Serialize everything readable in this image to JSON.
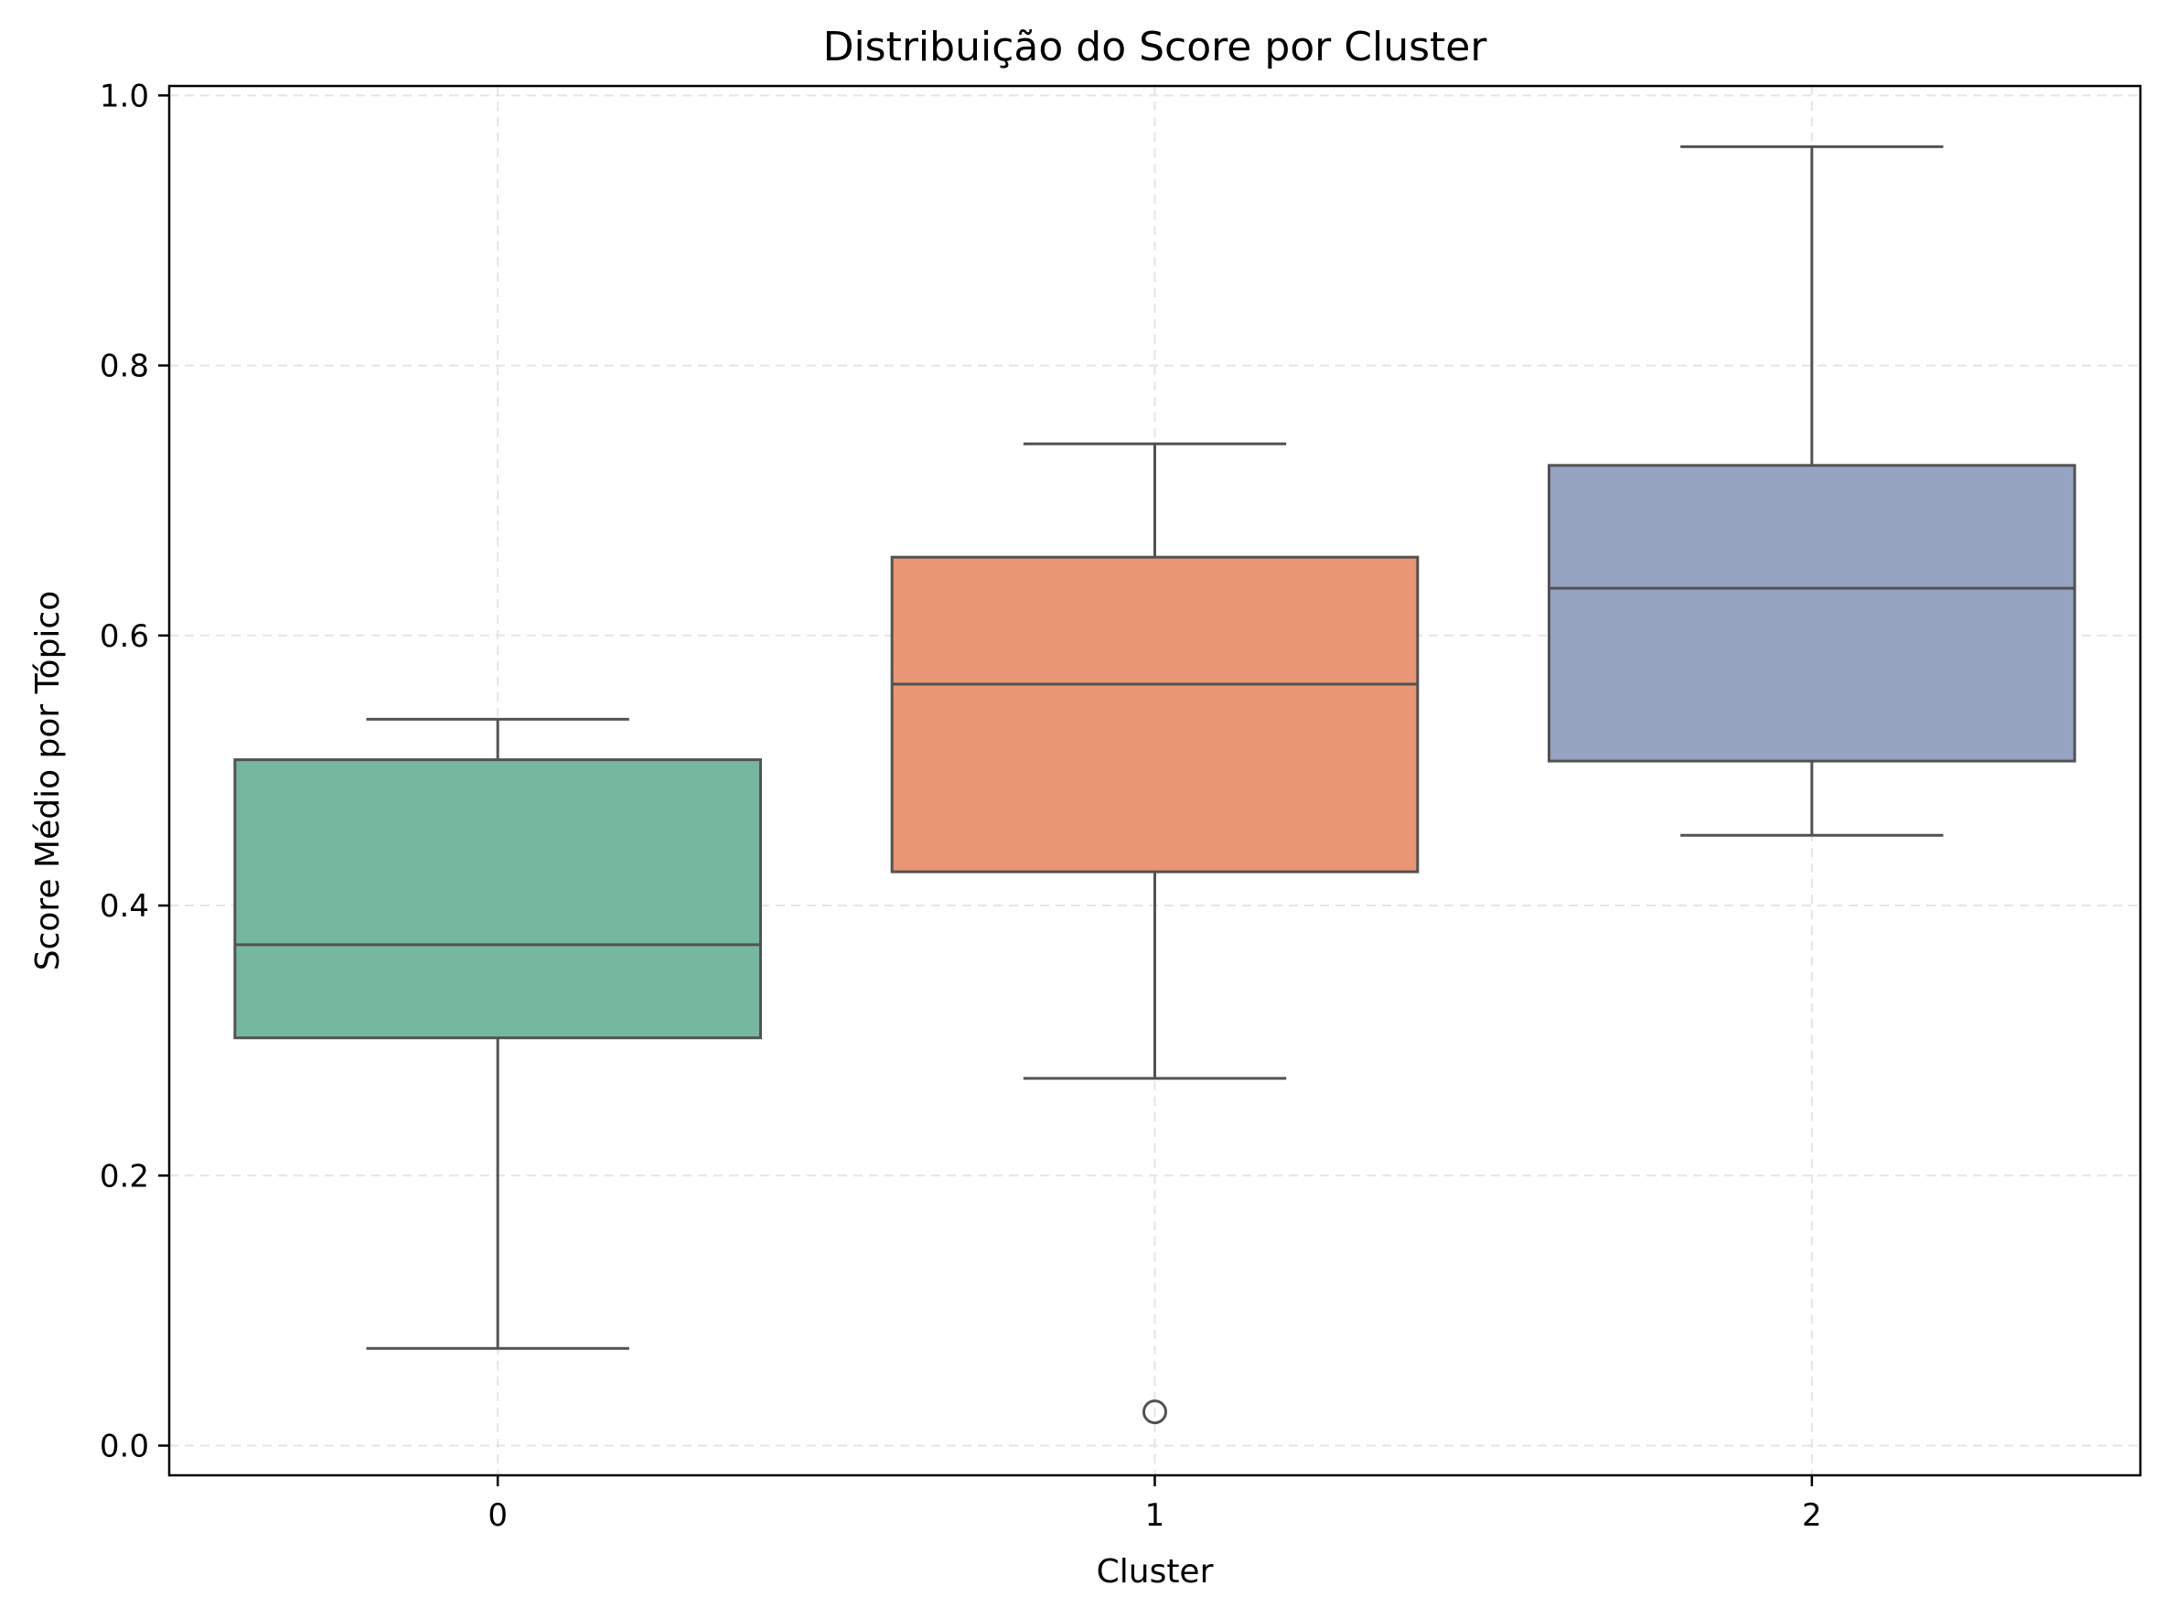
{
  "chart_data": {
    "type": "box",
    "title": "Distribuição do Score por Cluster",
    "xlabel": "Cluster",
    "ylabel": "Score Médio por Tópico",
    "ylim": [
      -0.022,
      1.007
    ],
    "yticks": [
      0.0,
      0.2,
      0.4,
      0.6,
      0.8,
      1.0
    ],
    "ytick_labels": [
      "0.0",
      "0.2",
      "0.4",
      "0.6",
      "0.8",
      "1.0"
    ],
    "grid": true,
    "categories": [
      "0",
      "1",
      "2"
    ],
    "boxes": [
      {
        "cluster": "0",
        "whisker_low": 0.072,
        "q1": 0.302,
        "median": 0.371,
        "q3": 0.508,
        "whisker_high": 0.538,
        "outliers": [],
        "color": "#76b7a0"
      },
      {
        "cluster": "1",
        "whisker_low": 0.272,
        "q1": 0.425,
        "median": 0.564,
        "q3": 0.658,
        "whisker_high": 0.742,
        "outliers": [
          0.025
        ],
        "color": "#e99674"
      },
      {
        "cluster": "2",
        "whisker_low": 0.452,
        "q1": 0.507,
        "median": 0.635,
        "q3": 0.726,
        "whisker_high": 0.962,
        "outliers": [],
        "color": "#96a3c1"
      }
    ],
    "line_color": "#525252",
    "grid_color": "#e5e5e5"
  }
}
